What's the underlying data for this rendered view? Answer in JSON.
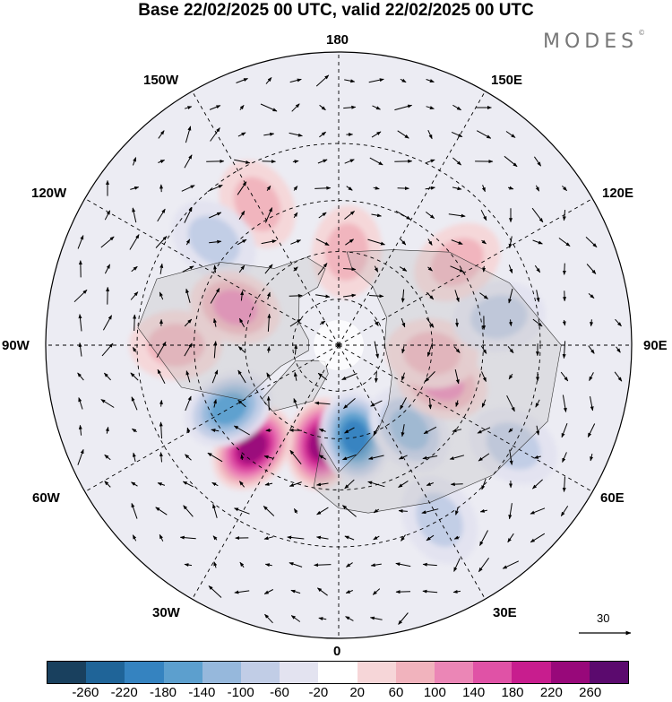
{
  "header": {
    "title": "Base 22/02/2025 00 UTC, valid 22/02/2025 00 UTC"
  },
  "logo": {
    "text": "MODES",
    "mark": "©"
  },
  "map": {
    "projection": "north polar stereographic",
    "longitude_labels": {
      "top": "180",
      "top_left": "150W",
      "top_right": "150E",
      "upper_left": "120W",
      "upper_right": "120E",
      "left": "90W",
      "right": "90E",
      "lower_left": "60W",
      "lower_right": "60E",
      "bottom_left": "30W",
      "bottom_right": "30E",
      "bottom": "0"
    },
    "vector_reference": {
      "label": "30"
    },
    "anomaly_centers": [
      {
        "sign": "positive",
        "lon": -10,
        "lat": 58,
        "level": 260
      },
      {
        "sign": "negative",
        "lon": 10,
        "lat": 60,
        "level": -200
      },
      {
        "sign": "positive",
        "lon": -40,
        "lat": 48,
        "level": 240
      },
      {
        "sign": "negative",
        "lon": -60,
        "lat": 50,
        "level": -160
      },
      {
        "sign": "negative",
        "lon": 40,
        "lat": 55,
        "level": -140
      },
      {
        "sign": "positive",
        "lon": 70,
        "lat": 55,
        "level": 150
      },
      {
        "sign": "positive",
        "lon": 85,
        "lat": 60,
        "level": 110
      },
      {
        "sign": "negative",
        "lon": 100,
        "lat": 40,
        "level": -110
      },
      {
        "sign": "positive",
        "lon": 125,
        "lat": 45,
        "level": 110
      },
      {
        "sign": "negative",
        "lon": 60,
        "lat": 30,
        "level": -90
      },
      {
        "sign": "negative",
        "lon": 30,
        "lat": 30,
        "level": -100
      },
      {
        "sign": "positive",
        "lon": -150,
        "lat": 40,
        "level": 90
      },
      {
        "sign": "negative",
        "lon": -130,
        "lat": 40,
        "level": -80
      },
      {
        "sign": "positive",
        "lon": -110,
        "lat": 55,
        "level": 140
      },
      {
        "sign": "positive",
        "lon": -90,
        "lat": 40,
        "level": 100
      },
      {
        "sign": "positive",
        "lon": 175,
        "lat": 60,
        "level": 90
      }
    ]
  },
  "colorbar": {
    "colors": [
      "#19405e",
      "#1f6498",
      "#3583c0",
      "#5c9fce",
      "#96b8dc",
      "#c1cde6",
      "#e3e3f0",
      "#ffffff",
      "#f6d6d8",
      "#f1b3bd",
      "#eb86b6",
      "#e052a6",
      "#c81d8e",
      "#98087a",
      "#5b0a6e"
    ],
    "ticks": [
      "-260",
      "-220",
      "-180",
      "-140",
      "-100",
      "-60",
      "-20",
      "20",
      "60",
      "100",
      "140",
      "180",
      "220",
      "260"
    ]
  }
}
